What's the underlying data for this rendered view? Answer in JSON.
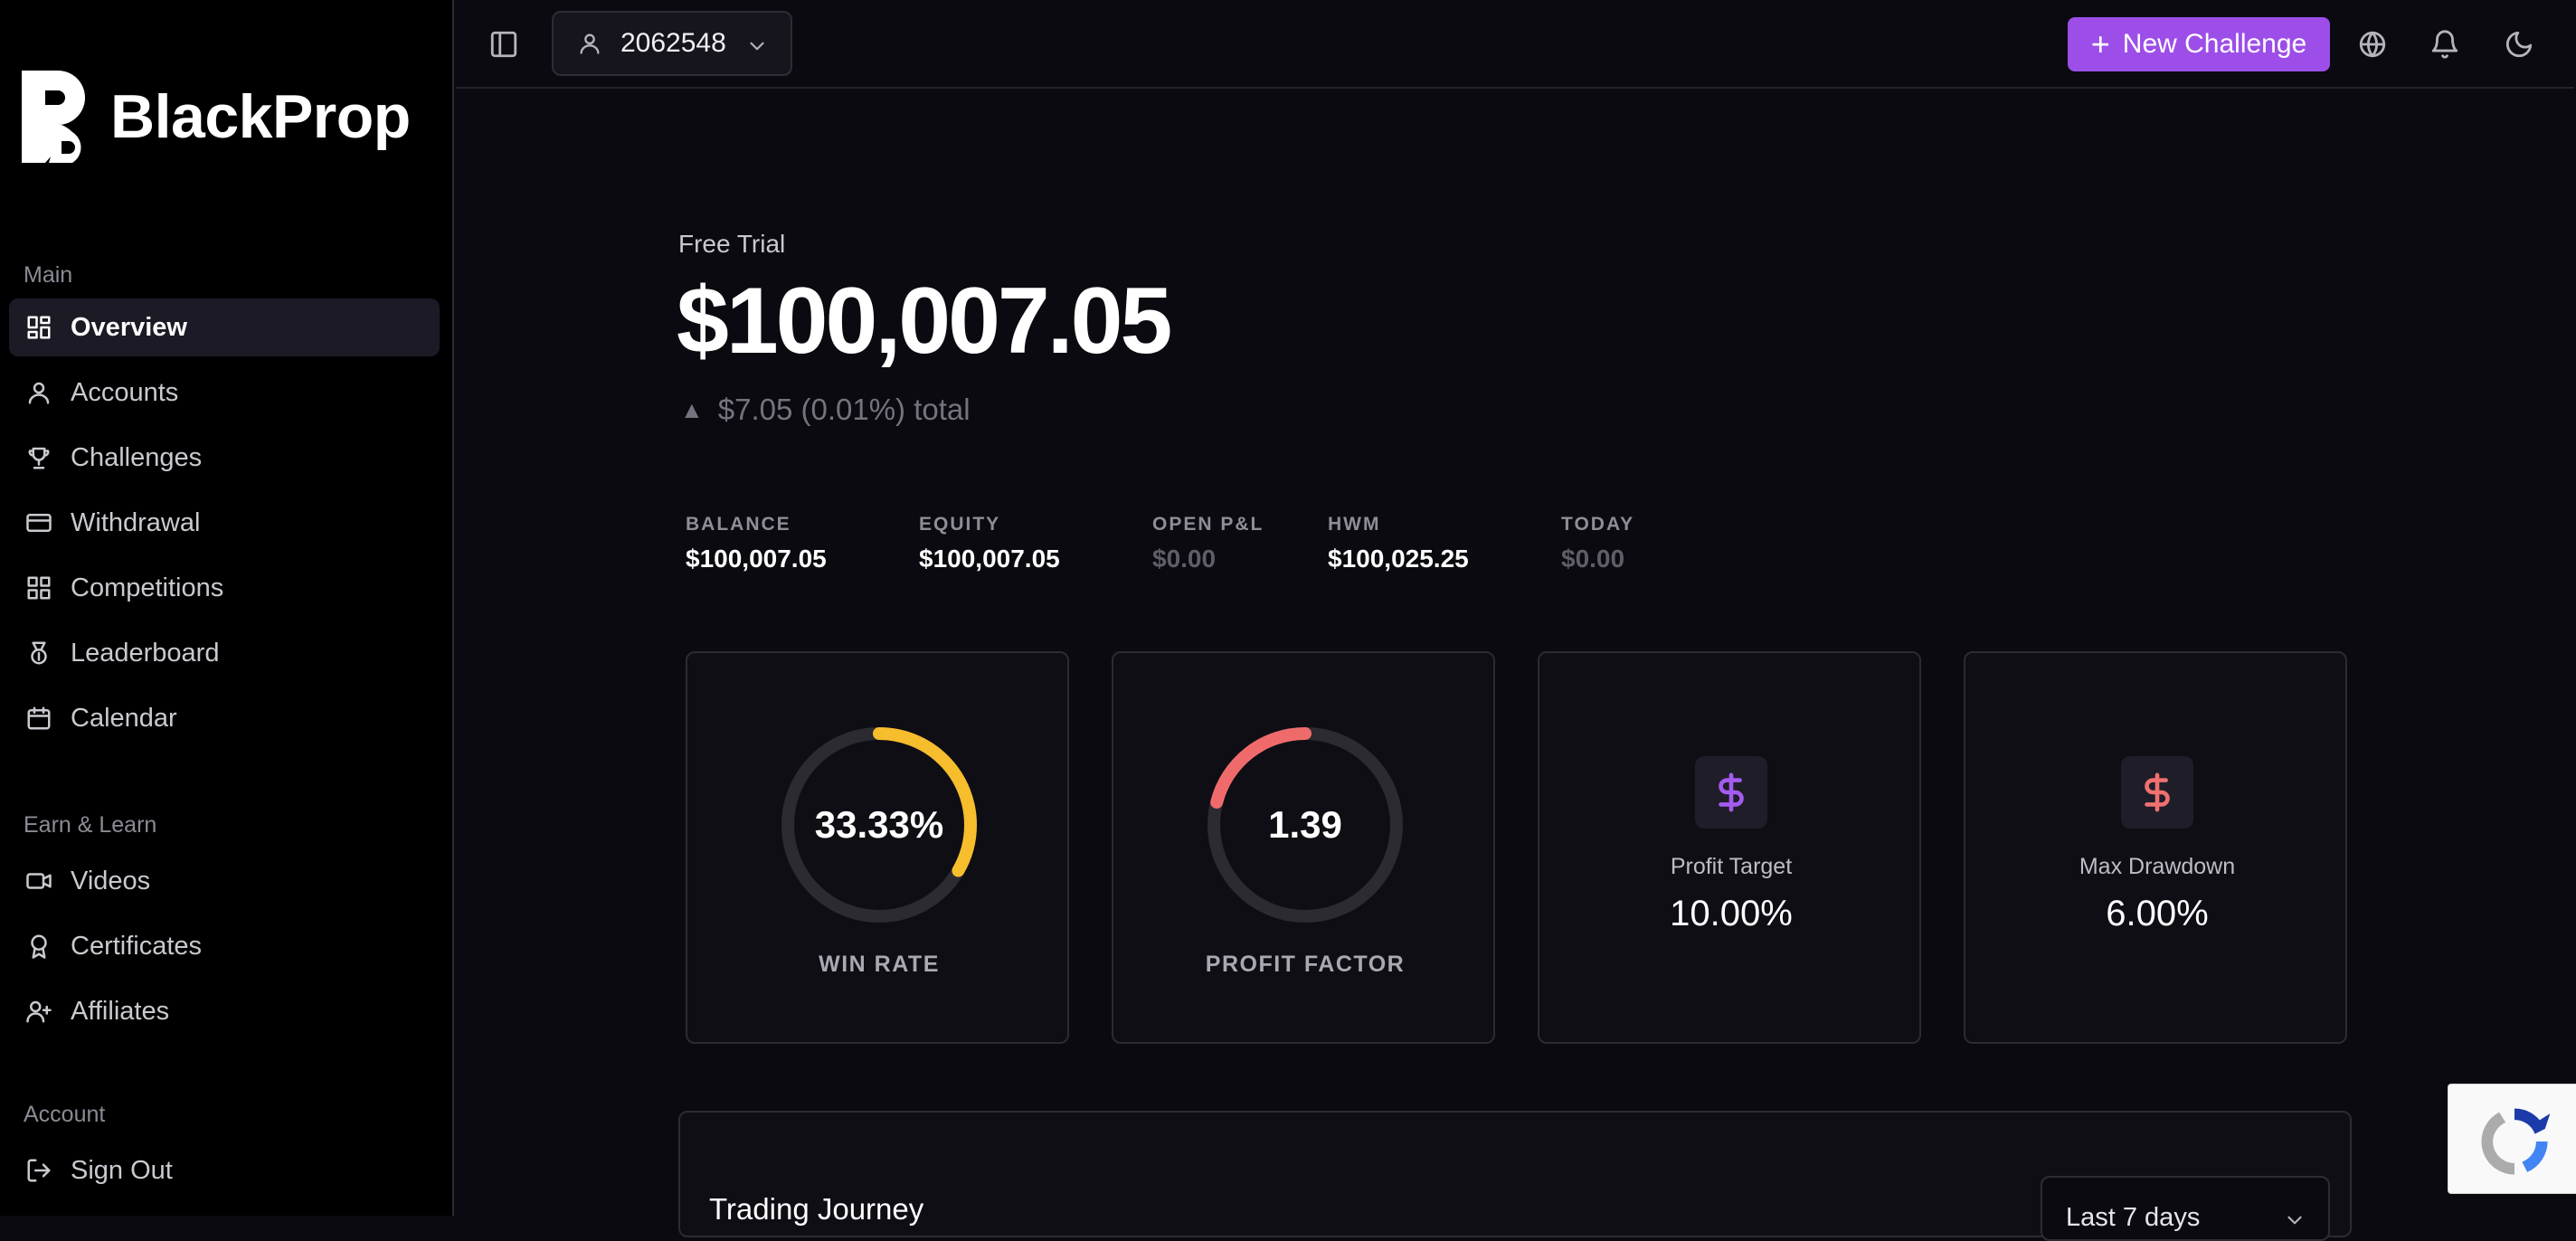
{
  "brand": {
    "name": "BlackProp"
  },
  "sidebar": {
    "sections": [
      {
        "heading": "Main",
        "items": [
          {
            "label": "Overview",
            "icon": "grid-icon",
            "active": true
          },
          {
            "label": "Accounts",
            "icon": "user-icon"
          },
          {
            "label": "Challenges",
            "icon": "trophy-icon"
          },
          {
            "label": "Withdrawal",
            "icon": "credit-card-icon"
          },
          {
            "label": "Competitions",
            "icon": "grid-icon"
          },
          {
            "label": "Leaderboard",
            "icon": "medal-icon"
          },
          {
            "label": "Calendar",
            "icon": "calendar-icon"
          }
        ]
      },
      {
        "heading": "Earn & Learn",
        "items": [
          {
            "label": "Videos",
            "icon": "video-icon"
          },
          {
            "label": "Certificates",
            "icon": "award-icon"
          },
          {
            "label": "Affiliates",
            "icon": "user-plus-icon"
          }
        ]
      },
      {
        "heading": "Account",
        "items": [
          {
            "label": "Sign Out",
            "icon": "log-out-icon"
          }
        ]
      }
    ]
  },
  "topbar": {
    "account_number": "2062548",
    "new_challenge_label": "New Challenge",
    "icons": [
      "panel-toggle-icon",
      "globe-icon",
      "bell-icon",
      "moon-icon"
    ]
  },
  "overview": {
    "plan": "Free Trial",
    "balance": "$100,007.05",
    "change": "$7.05 (0.01%) total",
    "stats": [
      {
        "label": "BALANCE",
        "value": "$100,007.05",
        "muted": false
      },
      {
        "label": "EQUITY",
        "value": "$100,007.05",
        "muted": false
      },
      {
        "label": "OPEN P&L",
        "value": "$0.00",
        "muted": true
      },
      {
        "label": "HWM",
        "value": "$100,025.25",
        "muted": false
      },
      {
        "label": "TODAY",
        "value": "$0.00",
        "muted": true
      }
    ],
    "win_rate": {
      "value": "33.33%",
      "label": "WIN RATE",
      "fraction": 0.3333,
      "color": "#f6bd2c"
    },
    "profit_factor": {
      "value": "1.39",
      "label": "PROFIT FACTOR",
      "fraction": 0.21,
      "color": "#ef6b6b"
    },
    "profit_target": {
      "label": "Profit Target",
      "value": "10.00%",
      "icon": "dollar-icon",
      "color": "#a35cf0"
    },
    "max_drawdown": {
      "label": "Max Drawdown",
      "value": "6.00%",
      "icon": "dollar-icon",
      "color": "#f07070"
    }
  },
  "journey": {
    "title": "Trading Journey",
    "range": "Last 7 days"
  }
}
